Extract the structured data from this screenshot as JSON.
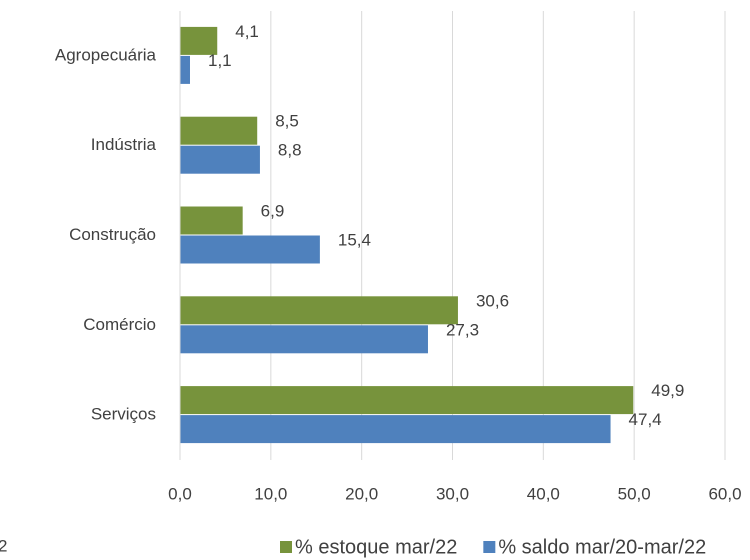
{
  "chart_data": {
    "type": "bar",
    "orientation": "horizontal",
    "categories": [
      "Agropecuária",
      "Indústria",
      "Construção",
      "Comércio",
      "Serviços"
    ],
    "series": [
      {
        "name": "% estoque mar/22",
        "color": "#77933c",
        "values": [
          4.1,
          8.5,
          6.9,
          30.6,
          49.9
        ],
        "value_labels": [
          "4,1",
          "8,5",
          "6,9",
          "30,6",
          "49,9"
        ]
      },
      {
        "name": "% saldo mar/20-mar/22",
        "color": "#4f81bd",
        "values": [
          1.1,
          8.8,
          15.4,
          27.3,
          47.4
        ],
        "value_labels": [
          "1,1",
          "8,8",
          "15,4",
          "27,3",
          "47,4"
        ]
      }
    ],
    "xlim": [
      0,
      60
    ],
    "xticks": [
      {
        "value": 0,
        "label": "0,0"
      },
      {
        "value": 10,
        "label": "10,0"
      },
      {
        "value": 20,
        "label": "20,0"
      },
      {
        "value": 30,
        "label": "30,0"
      },
      {
        "value": 40,
        "label": "40,0"
      },
      {
        "value": 50,
        "label": "50,0"
      },
      {
        "value": 60,
        "label": "60,0"
      }
    ],
    "grid": true,
    "legend": "bottom",
    "note": "2"
  }
}
